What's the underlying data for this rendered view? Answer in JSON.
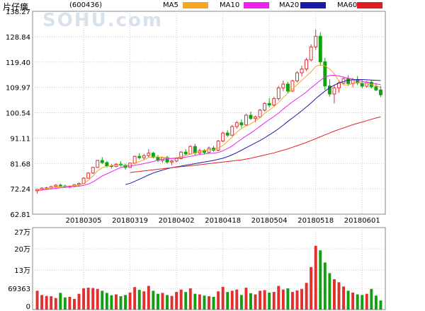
{
  "header": {
    "stock_name": "片仔癀",
    "stock_code": "(600436)",
    "watermark": "SOHU.com",
    "legend": [
      {
        "label": "MA5",
        "color": "#f5a623"
      },
      {
        "label": "MA10",
        "color": "#ee22ee"
      },
      {
        "label": "MA20",
        "color": "#1a1aa6"
      },
      {
        "label": "MA60",
        "color": "#e02020"
      }
    ]
  },
  "colors": {
    "up": "#e03030",
    "down": "#10a010",
    "grid": "#c8c8c8"
  },
  "chart_data": [
    {
      "type": "candlestick",
      "title": "",
      "y_ticks": [
        "138.27",
        "128.84",
        "119.40",
        "109.97",
        "100.54",
        "91.11",
        "81.68",
        "72.24",
        "62.81"
      ],
      "ylim": [
        62.81,
        138.27
      ],
      "x_ticks": [
        "20180305",
        "20180319",
        "20180402",
        "20180418",
        "20180504",
        "20180518",
        "20180601"
      ],
      "x_tick_indices": [
        10,
        20,
        30,
        40,
        50,
        60,
        70
      ],
      "candles": [
        [
          71.5,
          72.2,
          70.5,
          72.0
        ],
        [
          72.0,
          72.8,
          71.6,
          72.5
        ],
        [
          72.5,
          73.0,
          72.0,
          72.6
        ],
        [
          72.6,
          73.4,
          72.2,
          73.1
        ],
        [
          73.1,
          74.0,
          72.8,
          73.6
        ],
        [
          73.6,
          74.2,
          73.0,
          73.3
        ],
        [
          73.3,
          73.8,
          72.6,
          72.9
        ],
        [
          72.9,
          73.5,
          72.5,
          73.2
        ],
        [
          73.2,
          74.0,
          72.8,
          73.8
        ],
        [
          73.8,
          74.6,
          73.2,
          74.2
        ],
        [
          74.2,
          76.5,
          74.0,
          76.2
        ],
        [
          76.2,
          78.4,
          76.0,
          78.1
        ],
        [
          78.1,
          80.5,
          77.8,
          80.2
        ],
        [
          80.2,
          83.0,
          80.0,
          82.8
        ],
        [
          82.8,
          84.0,
          81.5,
          82.0
        ],
        [
          82.0,
          82.6,
          80.2,
          80.8
        ],
        [
          80.8,
          81.5,
          79.8,
          80.6
        ],
        [
          80.6,
          81.8,
          80.2,
          81.4
        ],
        [
          81.4,
          82.5,
          80.6,
          81.0
        ],
        [
          81.0,
          81.6,
          79.4,
          80.2
        ],
        [
          80.2,
          82.0,
          80.0,
          81.8
        ],
        [
          81.8,
          84.6,
          81.5,
          84.3
        ],
        [
          84.3,
          85.5,
          83.2,
          83.8
        ],
        [
          83.8,
          85.2,
          83.0,
          84.6
        ],
        [
          84.6,
          87.0,
          84.0,
          85.5
        ],
        [
          85.5,
          86.0,
          83.5,
          84.0
        ],
        [
          84.0,
          84.8,
          82.2,
          82.8
        ],
        [
          82.8,
          84.2,
          82.0,
          83.9
        ],
        [
          83.9,
          84.5,
          81.6,
          82.2
        ],
        [
          82.2,
          83.0,
          81.0,
          82.6
        ],
        [
          82.6,
          84.0,
          82.0,
          83.5
        ],
        [
          83.5,
          86.2,
          83.2,
          85.9
        ],
        [
          85.9,
          87.0,
          84.6,
          85.2
        ],
        [
          85.2,
          88.5,
          85.0,
          88.0
        ],
        [
          88.0,
          89.0,
          84.8,
          85.6
        ],
        [
          85.6,
          87.2,
          85.0,
          86.5
        ],
        [
          86.5,
          87.0,
          85.0,
          85.8
        ],
        [
          85.8,
          88.0,
          85.5,
          87.4
        ],
        [
          87.4,
          88.2,
          86.0,
          86.6
        ],
        [
          86.6,
          90.5,
          86.2,
          90.0
        ],
        [
          90.0,
          93.5,
          89.6,
          93.0
        ],
        [
          93.0,
          94.0,
          91.5,
          92.2
        ],
        [
          92.2,
          96.0,
          91.8,
          95.4
        ],
        [
          95.4,
          97.5,
          94.6,
          96.8
        ],
        [
          96.8,
          98.0,
          95.0,
          96.0
        ],
        [
          96.0,
          100.2,
          95.6,
          99.6
        ],
        [
          99.6,
          101.0,
          97.8,
          98.4
        ],
        [
          98.4,
          99.5,
          97.0,
          99.0
        ],
        [
          99.0,
          102.0,
          98.5,
          101.5
        ],
        [
          101.5,
          104.5,
          101.0,
          104.0
        ],
        [
          104.0,
          106.0,
          102.5,
          103.4
        ],
        [
          103.4,
          106.5,
          102.8,
          105.8
        ],
        [
          105.8,
          110.5,
          105.0,
          109.8
        ],
        [
          109.8,
          112.5,
          108.6,
          111.2
        ],
        [
          111.2,
          112.0,
          107.8,
          108.6
        ],
        [
          108.6,
          112.8,
          108.2,
          112.4
        ],
        [
          112.4,
          116.0,
          111.8,
          115.4
        ],
        [
          115.4,
          118.0,
          114.0,
          116.8
        ],
        [
          116.8,
          121.0,
          116.0,
          120.2
        ],
        [
          120.2,
          126.0,
          119.6,
          125.0
        ],
        [
          125.0,
          131.5,
          124.0,
          129.0
        ],
        [
          129.0,
          130.5,
          118.0,
          119.5
        ],
        [
          119.5,
          121.0,
          109.0,
          110.5
        ],
        [
          110.5,
          113.0,
          106.5,
          107.5
        ],
        [
          107.5,
          111.0,
          104.0,
          109.8
        ],
        [
          109.8,
          112.5,
          108.0,
          111.6
        ],
        [
          111.6,
          114.0,
          110.8,
          113.2
        ],
        [
          113.2,
          114.5,
          110.5,
          111.4
        ],
        [
          111.4,
          113.5,
          110.0,
          112.8
        ],
        [
          112.8,
          114.2,
          110.8,
          111.6
        ],
        [
          111.6,
          113.0,
          109.6,
          110.4
        ],
        [
          110.4,
          112.4,
          109.8,
          111.9
        ],
        [
          111.9,
          112.6,
          109.6,
          110.2
        ],
        [
          110.2,
          111.5,
          108.6,
          109.0
        ],
        [
          109.0,
          110.5,
          106.4,
          107.2
        ]
      ],
      "ma5": [
        71.8,
        72.1,
        72.4,
        72.6,
        72.8,
        73.0,
        73.2,
        73.3,
        73.4,
        73.6,
        74.2,
        75.4,
        77.0,
        78.9,
        80.1,
        80.6,
        80.9,
        81.1,
        81.1,
        81.0,
        81.2,
        81.8,
        82.4,
        83.0,
        83.9,
        84.2,
        84.1,
        84.0,
        83.7,
        83.6,
        83.8,
        84.2,
        84.6,
        85.1,
        85.6,
        86.1,
        86.5,
        86.8,
        86.9,
        87.4,
        88.4,
        89.9,
        91.5,
        93.3,
        94.7,
        95.6,
        96.4,
        97.5,
        98.7,
        100.3,
        101.6,
        102.8,
        104.3,
        106.2,
        107.8,
        109.4,
        111.0,
        112.6,
        114.2,
        115.8,
        117.8,
        118.4,
        118.0,
        116.8,
        115.0,
        112.4,
        111.0,
        110.8,
        111.5,
        111.8,
        111.6,
        111.4,
        111.0,
        110.6,
        110.0
      ],
      "ma10": [
        71.6,
        71.8,
        72.0,
        72.2,
        72.4,
        72.6,
        72.8,
        73.0,
        73.1,
        73.2,
        73.5,
        74.0,
        74.8,
        75.9,
        77.0,
        77.8,
        78.6,
        79.4,
        80.2,
        80.6,
        80.7,
        81.0,
        81.3,
        81.6,
        82.0,
        82.4,
        82.9,
        83.2,
        83.4,
        83.5,
        83.6,
        83.8,
        84.0,
        84.3,
        84.7,
        85.0,
        85.2,
        85.4,
        85.5,
        85.8,
        86.4,
        87.2,
        88.2,
        89.5,
        90.7,
        91.9,
        93.0,
        94.2,
        95.5,
        96.8,
        98.0,
        99.2,
        100.4,
        101.9,
        103.3,
        104.6,
        105.8,
        107.0,
        108.3,
        109.8,
        111.2,
        112.6,
        113.8,
        114.4,
        114.5,
        114.2,
        113.8,
        113.4,
        113.0,
        112.6,
        112.2,
        111.9,
        111.6,
        111.3,
        111.0
      ],
      "ma20": [
        null,
        null,
        null,
        null,
        null,
        null,
        null,
        null,
        null,
        null,
        null,
        null,
        null,
        null,
        null,
        null,
        null,
        null,
        null,
        73.8,
        74.3,
        75.0,
        75.8,
        76.6,
        77.4,
        78.1,
        78.7,
        79.2,
        79.7,
        80.1,
        80.4,
        80.7,
        81.0,
        81.3,
        81.6,
        81.9,
        82.2,
        82.5,
        82.8,
        83.2,
        83.6,
        84.2,
        84.9,
        85.7,
        86.6,
        87.5,
        88.4,
        89.3,
        90.2,
        91.2,
        92.3,
        93.4,
        94.6,
        95.9,
        97.3,
        98.6,
        99.9,
        101.3,
        102.7,
        104.2,
        105.8,
        107.2,
        108.6,
        109.8,
        110.8,
        111.6,
        112.2,
        112.6,
        112.8,
        112.9,
        112.9,
        112.8,
        112.7,
        112.6,
        112.5
      ],
      "ma60": [
        null,
        null,
        null,
        null,
        null,
        null,
        null,
        null,
        null,
        null,
        null,
        null,
        null,
        null,
        null,
        null,
        null,
        null,
        null,
        null,
        78.3,
        78.5,
        78.7,
        78.9,
        79.1,
        79.3,
        79.5,
        79.7,
        79.9,
        80.1,
        80.3,
        80.5,
        80.6,
        80.8,
        81.0,
        81.2,
        81.4,
        81.6,
        81.8,
        82.0,
        82.2,
        82.4,
        82.6,
        82.8,
        83.0,
        83.3,
        83.6,
        84.0,
        84.4,
        84.8,
        85.2,
        85.6,
        86.1,
        86.6,
        87.1,
        87.7,
        88.3,
        88.9,
        89.5,
        90.2,
        90.9,
        91.6,
        92.3,
        93.0,
        93.7,
        94.3,
        94.9,
        95.5,
        96.1,
        96.6,
        97.1,
        97.6,
        98.1,
        98.6,
        99.0
      ]
    },
    {
      "type": "bar",
      "title": "",
      "y_ticks": [
        "27万",
        "20万",
        "13万",
        "69363",
        "0"
      ],
      "y_tick_values": [
        270000,
        200000,
        130000,
        69363,
        0
      ],
      "ylim": [
        0,
        270000
      ],
      "volumes": [
        62000,
        48000,
        45000,
        44000,
        38000,
        55000,
        40000,
        42000,
        35000,
        52000,
        70000,
        72000,
        71000,
        68000,
        62000,
        55000,
        47000,
        50000,
        44000,
        48000,
        56000,
        74000,
        65000,
        60000,
        78000,
        62000,
        52000,
        55000,
        48000,
        45000,
        58000,
        66000,
        58000,
        70000,
        52000,
        50000,
        46000,
        44000,
        42000,
        60000,
        75000,
        58000,
        62000,
        66000,
        48000,
        72000,
        54000,
        50000,
        62000,
        64000,
        56000,
        58000,
        78000,
        66000,
        70000,
        58000,
        63000,
        68000,
        88000,
        140000,
        210000,
        195000,
        155000,
        120000,
        100000,
        90000,
        76000,
        62000,
        56000,
        50000,
        48000,
        52000,
        68000,
        46000,
        30000
      ]
    }
  ]
}
